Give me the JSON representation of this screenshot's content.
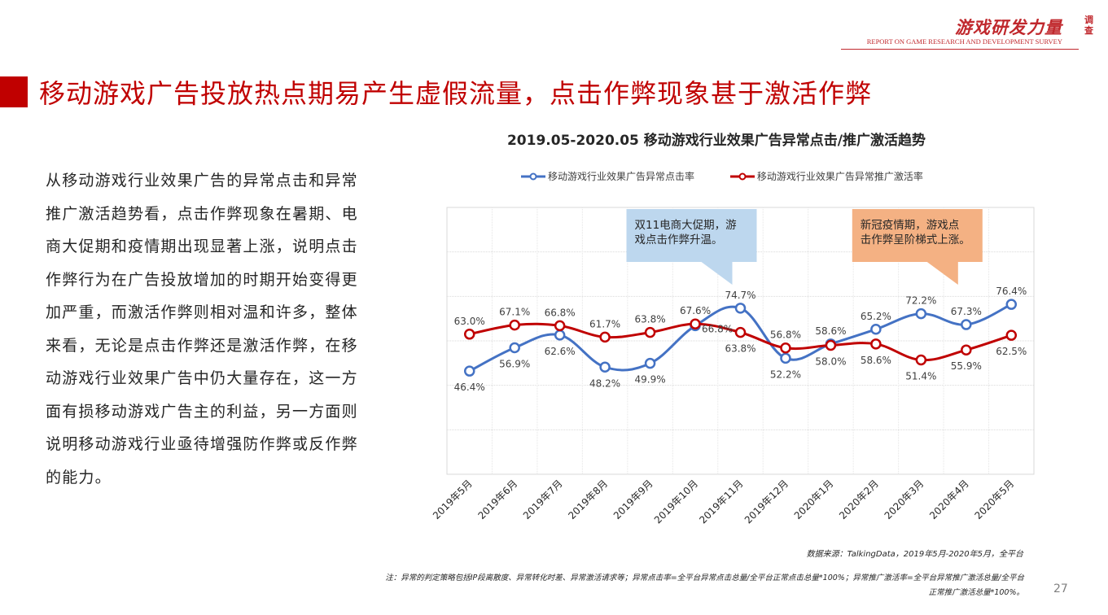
{
  "brand": {
    "name_cn": "游戏研发力量",
    "side_cn": "调查",
    "name_en": "REPORT ON GAME RESEARCH AND DEVELOPMENT SURVEY"
  },
  "page_title": "移动游戏广告投放热点期易产生虚假流量，点击作弊现象甚于激活作弊",
  "body_text": "从移动游戏行业效果广告的异常点击和异常推广激活趋势看，点击作弊现象在暑期、电商大促期和疫情期出现显著上涨，说明点击作弊行为在广告投放增加的时期开始变得更加严重，而激活作弊则相对温和许多，整体来看，无论是点击作弊还是激活作弊，在移动游戏行业效果广告中仍大量存在，这一方面有损移动游戏广告主的利益，另一方面则说明移动游戏行业亟待增强防作弊或反作弊的能力。",
  "chart_data": {
    "type": "line",
    "title": "2019.05-2020.05 移动游戏行业效果广告异常点击/推广激活趋势",
    "xlabel": "",
    "ylabel": "",
    "ylim": [
      0,
      120
    ],
    "y_grid_step": 20,
    "grid": true,
    "legend_position": "top",
    "categories": [
      "2019年5月",
      "2019年6月",
      "2019年7月",
      "2019年8月",
      "2019年9月",
      "2019年10月",
      "2019年11月",
      "2019年12月",
      "2020年1月",
      "2020年2月",
      "2020年3月",
      "2020年4月",
      "2020年5月"
    ],
    "series": [
      {
        "name": "移动游戏行业效果广告异常点击率",
        "color": "#4472c4",
        "values": [
          46.4,
          56.9,
          62.6,
          48.2,
          49.9,
          66.8,
          74.7,
          52.2,
          58.6,
          65.2,
          72.2,
          67.3,
          76.4
        ],
        "label_positions": [
          "below",
          "below",
          "below",
          "below",
          "below",
          "right",
          "above",
          "below",
          "above",
          "above",
          "above",
          "above",
          "above"
        ]
      },
      {
        "name": "移动游戏行业效果广告异常推广激活率",
        "color": "#c00000",
        "values": [
          63.0,
          67.1,
          66.8,
          61.7,
          63.8,
          67.6,
          63.8,
          56.8,
          58.0,
          58.6,
          51.4,
          55.9,
          62.5
        ],
        "label_positions": [
          "above",
          "above",
          "above",
          "above",
          "above",
          "above",
          "below",
          "above",
          "below",
          "below",
          "below",
          "below",
          "below"
        ]
      }
    ],
    "value_suffix": "%",
    "annotations": [
      {
        "text_lines": [
          "双11电商大促期，游",
          "戏点击作弊升温。"
        ],
        "category_index": 6,
        "fill": "#bdd7ee"
      },
      {
        "text_lines": [
          "新冠疫情期，游戏点",
          "击作弊呈阶梯式上涨。"
        ],
        "category_index": 11,
        "fill": "#f4b183"
      }
    ]
  },
  "source": "数据来源：TalkingData，2019年5月-2020年5月，全平台",
  "note_line1": "注：异常的判定策略包括IP段离散度、异常转化时差、异常激活请求等；异常点击率=全平台异常点击总量/全平台正常点击总量*100%；异常推广激活率=全平台异常推广激活总量/全平台",
  "note_line2": "正常推广激活总量*100%。",
  "page_number": "27"
}
